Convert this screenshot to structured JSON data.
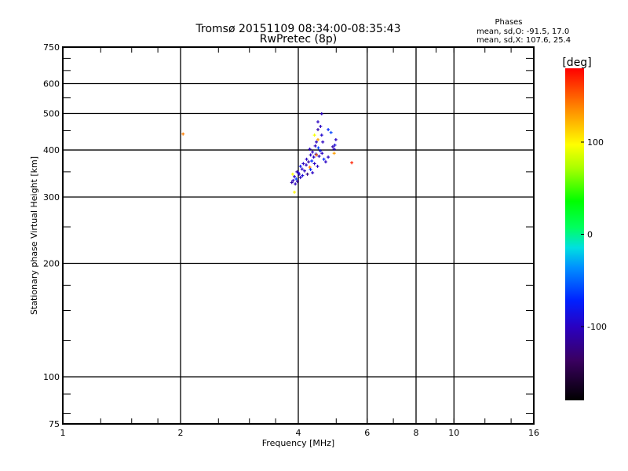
{
  "chart_data": {
    "type": "scatter",
    "title": "Tromsø 20151109 08:34:00-08:35:43",
    "subtitle": "RwPretec (8p)",
    "xlabel": "Frequency [MHz]",
    "ylabel": "Stationary phase Virtual Height [km]",
    "xscale": "log2",
    "yscale": "log",
    "xlim": [
      1,
      16
    ],
    "ylim": [
      75,
      750
    ],
    "x_ticks": [
      1,
      2,
      4,
      6,
      8,
      10,
      16
    ],
    "x_grid": [
      2,
      4,
      6,
      8,
      10
    ],
    "y_ticks": [
      75,
      100,
      200,
      300,
      400,
      500,
      600,
      750
    ],
    "y_grid": [
      100,
      200,
      300,
      400,
      500,
      600
    ],
    "grid": true,
    "legend_text": {
      "heading": "Phases",
      "line_o": "mean, sd,O: -91.5, 17.0",
      "line_x": "mean, sd,X: 107.6, 25.4"
    },
    "colorbar": {
      "label": "[deg]",
      "range": [
        -180,
        180
      ],
      "ticks": [
        100,
        0,
        -100
      ]
    },
    "points": [
      {
        "f": 4.59,
        "h": 499,
        "phase": -100
      },
      {
        "f": 4.49,
        "h": 475,
        "phase": -100
      },
      {
        "f": 4.49,
        "h": 453,
        "phase": -110
      },
      {
        "f": 4.59,
        "h": 438,
        "phase": -95
      },
      {
        "f": 4.77,
        "h": 453,
        "phase": -70
      },
      {
        "f": 4.85,
        "h": 445,
        "phase": -60
      },
      {
        "f": 4.4,
        "h": 438,
        "phase": 95
      },
      {
        "f": 4.99,
        "h": 426,
        "phase": -100
      },
      {
        "f": 4.94,
        "h": 402,
        "phase": -100
      },
      {
        "f": 4.96,
        "h": 412,
        "phase": -90
      },
      {
        "f": 4.49,
        "h": 426,
        "phase": 130
      },
      {
        "f": 4.28,
        "h": 402,
        "phase": -100
      },
      {
        "f": 4.55,
        "h": 398,
        "phase": -80
      },
      {
        "f": 4.77,
        "h": 383,
        "phase": -100
      },
      {
        "f": 4.38,
        "h": 383,
        "phase": -100
      },
      {
        "f": 4.33,
        "h": 374,
        "phase": -70
      },
      {
        "f": 4.19,
        "h": 365,
        "phase": -100
      },
      {
        "f": 4.09,
        "h": 356,
        "phase": -100
      },
      {
        "f": 4.0,
        "h": 348,
        "phase": -90
      },
      {
        "f": 3.91,
        "h": 340,
        "phase": -100
      },
      {
        "f": 3.85,
        "h": 328,
        "phase": -110
      },
      {
        "f": 3.91,
        "h": 309,
        "phase": 100
      },
      {
        "f": 3.87,
        "h": 345,
        "phase": 95
      },
      {
        "f": 4.94,
        "h": 392,
        "phase": 130
      },
      {
        "f": 4.28,
        "h": 360,
        "phase": 140
      },
      {
        "f": 5.48,
        "h": 370,
        "phase": 170
      },
      {
        "f": 2.03,
        "h": 441,
        "phase": 140
      },
      {
        "f": 4.45,
        "h": 420,
        "phase": -100
      },
      {
        "f": 4.42,
        "h": 410,
        "phase": -100
      },
      {
        "f": 4.5,
        "h": 405,
        "phase": -60
      },
      {
        "f": 4.35,
        "h": 395,
        "phase": -100
      },
      {
        "f": 4.3,
        "h": 388,
        "phase": -100
      },
      {
        "f": 4.44,
        "h": 390,
        "phase": -90
      },
      {
        "f": 4.2,
        "h": 378,
        "phase": -100
      },
      {
        "f": 4.25,
        "h": 372,
        "phase": -110
      },
      {
        "f": 4.4,
        "h": 368,
        "phase": -100
      },
      {
        "f": 4.12,
        "h": 368,
        "phase": -100
      },
      {
        "f": 4.05,
        "h": 362,
        "phase": -80
      },
      {
        "f": 4.15,
        "h": 352,
        "phase": -100
      },
      {
        "f": 4.3,
        "h": 355,
        "phase": -70
      },
      {
        "f": 4.02,
        "h": 345,
        "phase": -100
      },
      {
        "f": 3.97,
        "h": 350,
        "phase": -110
      },
      {
        "f": 3.95,
        "h": 335,
        "phase": -60
      },
      {
        "f": 4.05,
        "h": 338,
        "phase": -100
      },
      {
        "f": 3.88,
        "h": 332,
        "phase": -100
      },
      {
        "f": 4.1,
        "h": 342,
        "phase": -90
      },
      {
        "f": 4.52,
        "h": 385,
        "phase": -100
      },
      {
        "f": 4.6,
        "h": 392,
        "phase": -100
      },
      {
        "f": 4.65,
        "h": 378,
        "phase": -70
      },
      {
        "f": 4.48,
        "h": 362,
        "phase": -100
      },
      {
        "f": 4.35,
        "h": 348,
        "phase": -100
      },
      {
        "f": 4.22,
        "h": 345,
        "phase": -120
      },
      {
        "f": 3.93,
        "h": 325,
        "phase": -100
      },
      {
        "f": 3.98,
        "h": 330,
        "phase": -110
      },
      {
        "f": 4.62,
        "h": 420,
        "phase": -100
      },
      {
        "f": 4.56,
        "h": 462,
        "phase": -100
      },
      {
        "f": 4.45,
        "h": 388,
        "phase": 150
      },
      {
        "f": 4.9,
        "h": 408,
        "phase": -110
      },
      {
        "f": 4.7,
        "h": 372,
        "phase": -100
      }
    ]
  }
}
